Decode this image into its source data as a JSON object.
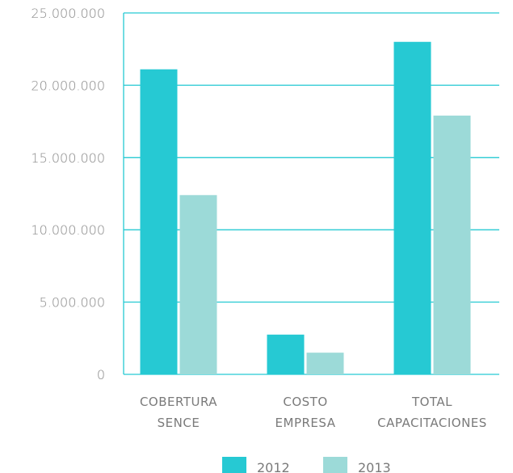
{
  "chart_data": {
    "type": "bar",
    "categories": [
      [
        "COBERTURA",
        "SENCE"
      ],
      [
        "COSTO",
        "EMPRESA"
      ],
      [
        "TOTAL",
        "CAPACITACIONES"
      ]
    ],
    "y_ticks": [
      "0",
      "5.000.000",
      "10.000.000",
      "15.000.000",
      "20.000.000",
      "25.000.000"
    ],
    "ylim": [
      0,
      25000000
    ],
    "grid": true,
    "legend_position": "bottom",
    "series": [
      {
        "name": "2012",
        "color": "#26c9d3",
        "values": [
          21100000,
          2750000,
          23000000
        ]
      },
      {
        "name": "2013",
        "color": "#9cdad8",
        "values": [
          12400000,
          1500000,
          17900000
        ]
      }
    ],
    "colors": {
      "grid": "#26c9d3",
      "axis": "#26c9d3"
    }
  }
}
